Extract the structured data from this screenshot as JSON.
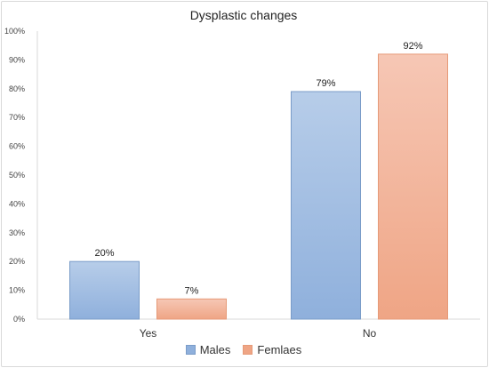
{
  "chart_data": {
    "type": "bar",
    "title": "Dysplastic changes",
    "categories": [
      "Yes",
      "No"
    ],
    "series": [
      {
        "name": "Males",
        "values": [
          20,
          79
        ],
        "labels": [
          "20%",
          "79%"
        ],
        "color_top": "#b7cde9",
        "color_bottom": "#8fb0dc",
        "stroke": "#7a9cc8"
      },
      {
        "name": "Femlaes",
        "values": [
          7,
          92
        ],
        "labels": [
          "7%",
          "92%"
        ],
        "color_top": "#f6c7b5",
        "color_bottom": "#efa585",
        "stroke": "#e69a78"
      }
    ],
    "ylim": [
      0,
      100
    ],
    "yticks": [
      0,
      10,
      20,
      30,
      40,
      50,
      60,
      70,
      80,
      90,
      100
    ],
    "ytick_labels": [
      "0%",
      "10%",
      "20%",
      "30%",
      "40%",
      "50%",
      "60%",
      "70%",
      "80%",
      "90%",
      "100%"
    ],
    "grid": false,
    "legend_position": "bottom"
  }
}
